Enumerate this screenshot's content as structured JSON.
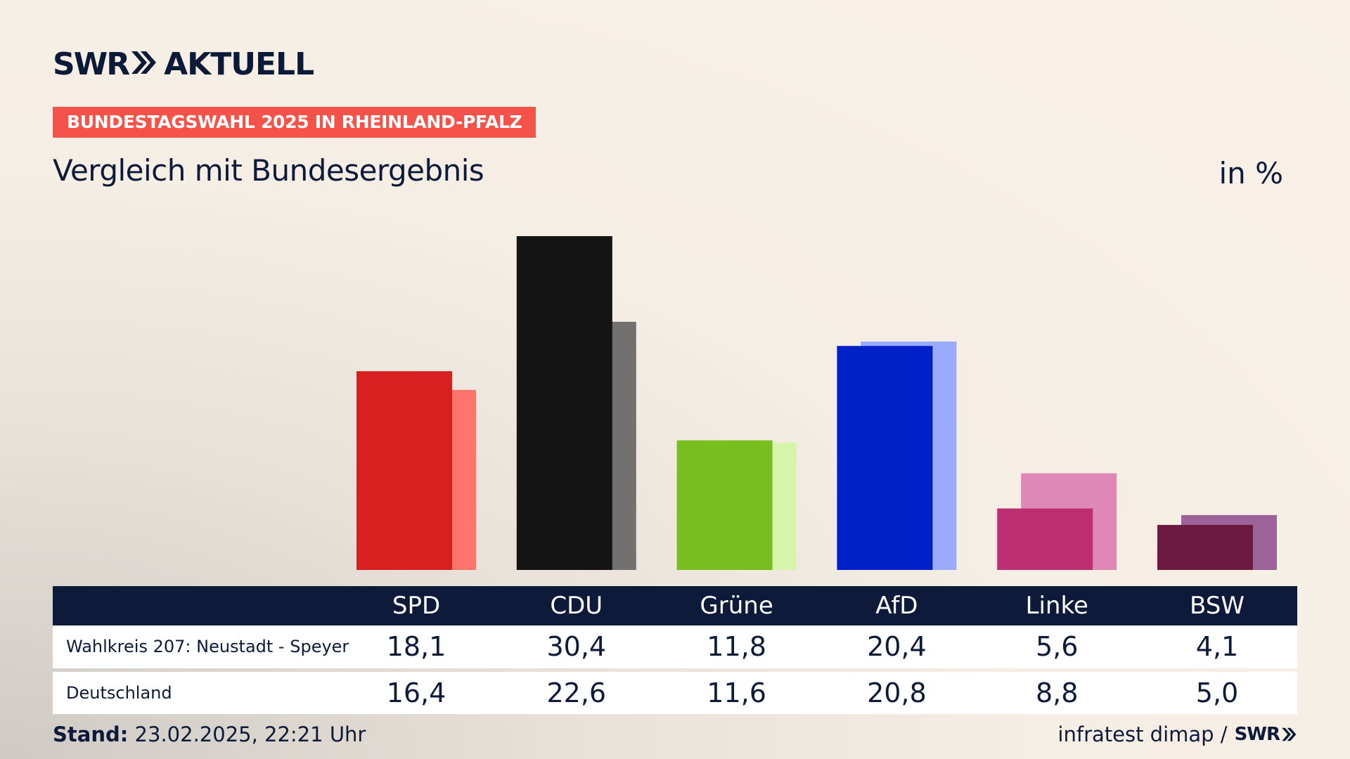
{
  "header": {
    "logo_left": "SWR",
    "logo_right": "AKTUELL",
    "banner": "BUNDESTAGSWAHL 2025 IN RHEINLAND-PFALZ",
    "subtitle": "Vergleich mit Bundesergebnis",
    "unit": "in %"
  },
  "chart_data": {
    "type": "bar",
    "title": "Vergleich mit Bundesergebnis",
    "unit": "in %",
    "categories": [
      "SPD",
      "CDU",
      "Grüne",
      "AfD",
      "Linke",
      "BSW"
    ],
    "series": [
      {
        "name": "Wahlkreis 207: Neustadt - Speyer",
        "values": [
          18.1,
          30.4,
          11.8,
          20.4,
          5.6,
          4.1
        ],
        "labels": [
          "18,1",
          "30,4",
          "11,8",
          "20,4",
          "5,6",
          "4,1"
        ],
        "colors": [
          "#d7201f",
          "#141414",
          "#78be1e",
          "#0020c8",
          "#bb2f72",
          "#6c1a40"
        ]
      },
      {
        "name": "Deutschland",
        "values": [
          16.4,
          22.6,
          11.6,
          20.8,
          8.8,
          5.0
        ],
        "labels": [
          "16,4",
          "22,6",
          "11,6",
          "20,8",
          "8,8",
          "5,0"
        ],
        "colors": [
          "#ff746c",
          "#727170",
          "#d6f5aa",
          "#9aabfd",
          "#df88b7",
          "#9c6399"
        ]
      }
    ],
    "ylim": [
      0,
      30.4
    ],
    "grid": false,
    "legend": "table below chart"
  },
  "footer": {
    "stand_label": "Stand:",
    "stand_value": "23.02.2025, 22:21 Uhr",
    "source": "infratest dimap /",
    "source_logo": "SWR"
  }
}
